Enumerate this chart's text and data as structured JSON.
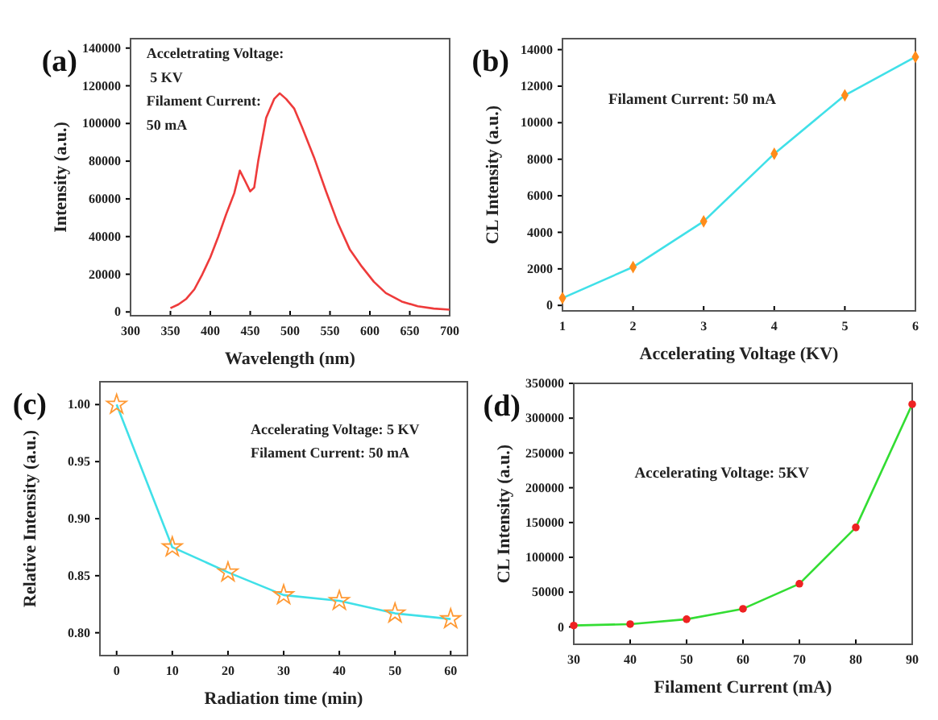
{
  "chart_data": [
    {
      "type": "line",
      "xlabel": "Wavelength (nm)",
      "ylabel": "Intensity (a.u.)",
      "xlim": [
        300,
        700
      ],
      "xticks": [
        300,
        350,
        400,
        450,
        500,
        550,
        600,
        650,
        700
      ],
      "ylim": [
        -2000,
        145000
      ],
      "yticks": [
        0,
        20000,
        40000,
        60000,
        80000,
        100000,
        120000,
        140000
      ],
      "annotations": [
        "(a)",
        "Acceletrating Voltage:\n 5 KV\nFilament Current:\n50 mA"
      ],
      "series": [
        {
          "type": "line",
          "color": "#ee3b3b",
          "x": [
            350,
            360,
            370,
            380,
            390,
            400,
            410,
            420,
            430,
            437,
            443,
            450,
            455,
            460,
            470,
            480,
            487,
            495,
            505,
            515,
            530,
            545,
            560,
            575,
            590,
            605,
            620,
            640,
            660,
            680,
            700
          ],
          "values": [
            2000,
            4000,
            7000,
            12000,
            20000,
            29000,
            40000,
            52000,
            63000,
            75000,
            70000,
            64000,
            66000,
            80000,
            103000,
            113000,
            116000,
            113000,
            108000,
            98000,
            82000,
            64000,
            47000,
            33000,
            24000,
            16000,
            10000,
            5500,
            3000,
            1800,
            1200
          ]
        }
      ]
    },
    {
      "type": "line",
      "xlabel": "Accelerating Voltage (KV)",
      "ylabel": "CL Intensity (a.u.)",
      "xlim": [
        1,
        6
      ],
      "xticks": [
        1,
        2,
        3,
        4,
        5,
        6
      ],
      "ylim": [
        -300,
        14600
      ],
      "yticks": [
        0,
        2000,
        4000,
        6000,
        8000,
        10000,
        12000,
        14000
      ],
      "annotations": [
        "(b)",
        "Filament Current: 50 mA"
      ],
      "series": [
        {
          "type": "line",
          "color": "#40e0e8",
          "x": [
            1,
            2,
            3,
            4,
            5,
            6
          ],
          "values": [
            400,
            2100,
            4600,
            8300,
            11500,
            13600
          ]
        },
        {
          "type": "scatter",
          "marker": "diamond",
          "color": "#ff8c1a",
          "x": [
            1,
            2,
            3,
            4,
            5,
            6
          ],
          "values": [
            400,
            2100,
            4600,
            8300,
            11500,
            13600
          ]
        }
      ]
    },
    {
      "type": "line",
      "xlabel": "Radiation time (min)",
      "ylabel": "Relative Intensity (a.u.)",
      "xlim": [
        -3,
        63
      ],
      "xticks": [
        0,
        10,
        20,
        30,
        40,
        50,
        60
      ],
      "ylim": [
        0.78,
        1.02
      ],
      "yticks": [
        {
          "value": 0.8,
          "label": "0.80"
        },
        {
          "value": 0.85,
          "label": "0.85"
        },
        {
          "value": 0.9,
          "label": "0.90"
        },
        {
          "value": 0.95,
          "label": "0.95"
        },
        {
          "value": 1.0,
          "label": "1.00"
        }
      ],
      "annotations": [
        "(c)",
        "Accelerating Voltage: 5 KV\nFilament Current: 50 mA"
      ],
      "series": [
        {
          "type": "line",
          "color": "#40e0e8",
          "x": [
            0,
            10,
            20,
            30,
            40,
            50,
            60
          ],
          "values": [
            1.0,
            0.875,
            0.853,
            0.833,
            0.828,
            0.817,
            0.812
          ]
        },
        {
          "type": "scatter",
          "marker": "star",
          "color": "#ff9933",
          "x": [
            0,
            10,
            20,
            30,
            40,
            50,
            60
          ],
          "values": [
            1.0,
            0.875,
            0.853,
            0.833,
            0.828,
            0.817,
            0.812
          ]
        }
      ]
    },
    {
      "type": "line",
      "xlabel": "Filament Current (mA)",
      "ylabel": "CL Intensity (a.u.)",
      "xlim": [
        30,
        90
      ],
      "xticks": [
        30,
        40,
        50,
        60,
        70,
        80,
        90
      ],
      "ylim": [
        -25000,
        350000
      ],
      "yticks": [
        0,
        50000,
        100000,
        150000,
        200000,
        250000,
        300000,
        350000
      ],
      "annotations": [
        "(d)",
        "Accelerating Voltage: 5KV"
      ],
      "series": [
        {
          "type": "line",
          "color": "#33dd33",
          "x": [
            30,
            40,
            50,
            60,
            70,
            80,
            90
          ],
          "values": [
            2000,
            4000,
            11000,
            26000,
            62000,
            143000,
            320000
          ]
        },
        {
          "type": "scatter",
          "marker": "circle",
          "color": "#ee2222",
          "x": [
            30,
            40,
            50,
            60,
            70,
            80,
            90
          ],
          "values": [
            2000,
            4000,
            11000,
            26000,
            62000,
            143000,
            320000
          ]
        }
      ]
    }
  ]
}
